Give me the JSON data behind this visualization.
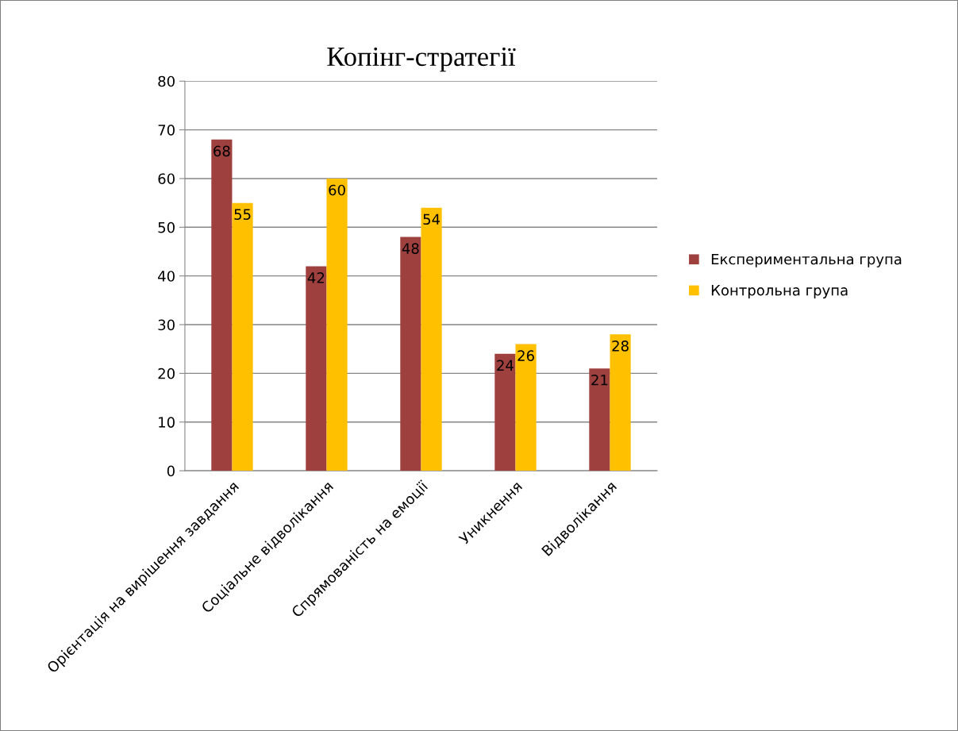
{
  "chart_data": {
    "type": "bar",
    "title": "Копінг-стратегії",
    "categories": [
      "Орієнтація на вирішення завдання",
      "Соціальне відволікання",
      "Спрямованість на емоції",
      "Уникнення",
      "Відволікання"
    ],
    "series": [
      {
        "name": "Експериментальна група",
        "color": "#9e413e",
        "values": [
          68,
          42,
          48,
          24,
          21
        ]
      },
      {
        "name": "Контрольна група",
        "color": "#ffc000",
        "values": [
          55,
          60,
          54,
          26,
          28
        ]
      }
    ],
    "ylim": [
      0,
      80
    ],
    "yticks": [
      0,
      10,
      20,
      30,
      40,
      50,
      60,
      70,
      80
    ],
    "grid": "y",
    "legend": "right",
    "data_labels": true
  }
}
